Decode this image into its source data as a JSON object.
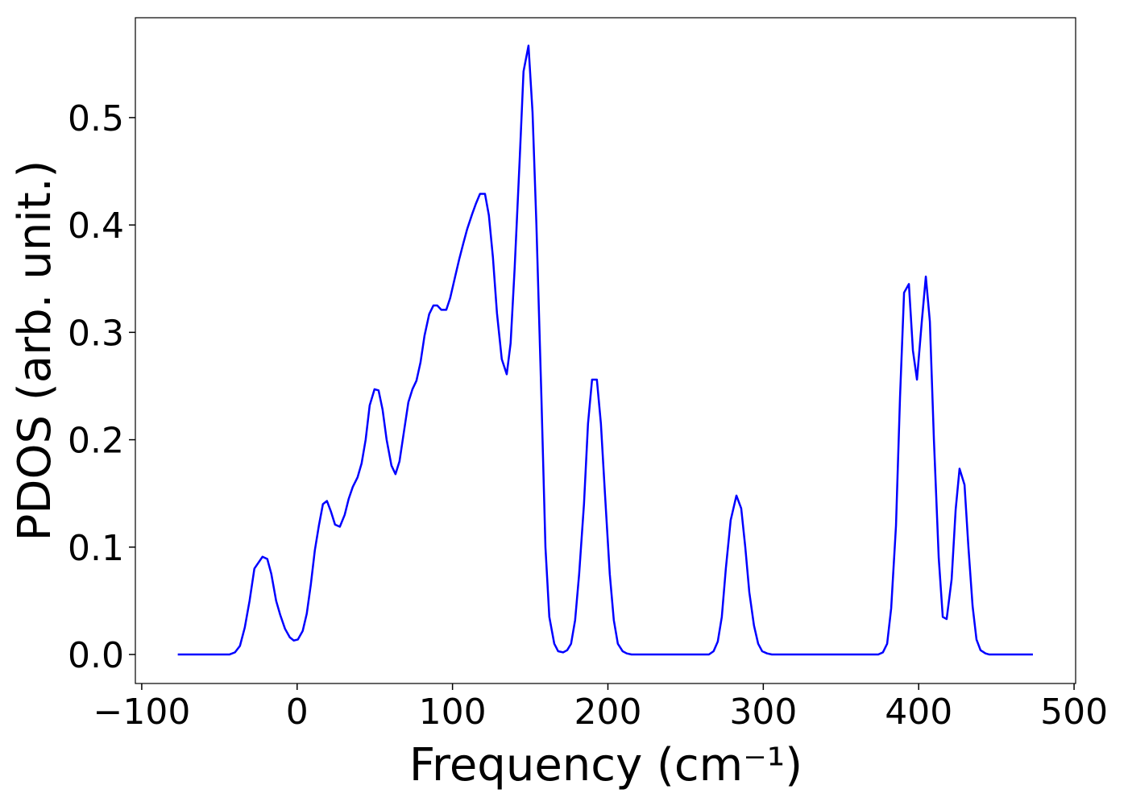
{
  "chart_data": {
    "type": "line",
    "xlabel": "Frequency (cm⁻¹)",
    "ylabel": "PDOS (arb. unit.)",
    "x": [
      -76.8,
      -43.6,
      -40,
      -36.8,
      -33.7,
      -30.6,
      -27.5,
      -22.3,
      -19.2,
      -16.6,
      -13.5,
      -10.9,
      -7.8,
      -4.7,
      -2.1,
      0.5,
      3.6,
      6.2,
      8.8,
      11.4,
      14,
      16.6,
      19.2,
      21.8,
      24.4,
      27.5,
      30.6,
      33.2,
      35.8,
      38.9,
      41.5,
      44.1,
      46.7,
      49.8,
      52.4,
      55,
      57.6,
      60.7,
      63.3,
      65.9,
      69,
      71.6,
      74.2,
      76.8,
      79.4,
      82,
      85,
      87.7,
      90.2,
      92.8,
      96,
      98.5,
      101.7,
      104.3,
      106.8,
      109.4,
      112.6,
      115.1,
      117.7,
      120.9,
      123.4,
      126,
      128.6,
      131.7,
      134.9,
      137.4,
      140,
      143.2,
      145.7,
      148.9,
      151.5,
      154,
      157.2,
      159.8,
      162.3,
      165.5,
      168,
      171.2,
      173.8,
      176.3,
      178.9,
      181.5,
      184.6,
      187.2,
      189.8,
      192.9,
      195.5,
      198.1,
      201.2,
      203.8,
      206.4,
      209.5,
      212.1,
      215.2,
      265,
      268,
      270.7,
      273.3,
      275.9,
      279,
      282.7,
      285.8,
      288.4,
      291,
      294,
      296.7,
      299.3,
      302.4,
      305.5,
      374,
      377,
      379.7,
      382.3,
      385.4,
      388,
      390.6,
      393.7,
      396.3,
      398.9,
      402,
      404.6,
      407.2,
      409.8,
      412.9,
      415.5,
      418,
      421.2,
      423.8,
      426.3,
      429.5,
      432,
      434.7,
      437.2,
      439.8,
      443,
      445.5,
      473.5
    ],
    "series": [
      {
        "color": "#0000ff",
        "values": [
          0,
          0,
          0.002,
          0.008,
          0.025,
          0.05,
          0.08,
          0.091,
          0.089,
          0.075,
          0.05,
          0.037,
          0.024,
          0.016,
          0.013,
          0.014,
          0.022,
          0.038,
          0.065,
          0.097,
          0.12,
          0.14,
          0.143,
          0.133,
          0.121,
          0.119,
          0.13,
          0.145,
          0.156,
          0.165,
          0.178,
          0.2,
          0.232,
          0.247,
          0.246,
          0.228,
          0.2,
          0.176,
          0.168,
          0.18,
          0.21,
          0.235,
          0.247,
          0.255,
          0.272,
          0.297,
          0.317,
          0.325,
          0.325,
          0.321,
          0.321,
          0.332,
          0.352,
          0.368,
          0.382,
          0.396,
          0.41,
          0.42,
          0.429,
          0.429,
          0.409,
          0.37,
          0.318,
          0.275,
          0.261,
          0.29,
          0.36,
          0.46,
          0.543,
          0.567,
          0.505,
          0.4,
          0.24,
          0.1,
          0.035,
          0.01,
          0.003,
          0.002,
          0.004,
          0.01,
          0.032,
          0.075,
          0.14,
          0.215,
          0.256,
          0.256,
          0.215,
          0.15,
          0.075,
          0.032,
          0.01,
          0.003,
          0.001,
          0,
          0,
          0.003,
          0.012,
          0.035,
          0.08,
          0.125,
          0.148,
          0.136,
          0.1,
          0.058,
          0.027,
          0.01,
          0.003,
          0.001,
          0,
          0,
          0.002,
          0.01,
          0.043,
          0.12,
          0.24,
          0.337,
          0.345,
          0.283,
          0.256,
          0.31,
          0.352,
          0.31,
          0.2,
          0.09,
          0.035,
          0.033,
          0.07,
          0.135,
          0.173,
          0.158,
          0.1,
          0.045,
          0.014,
          0.004,
          0.001,
          0,
          0
        ]
      }
    ],
    "xlim": [
      -104.1,
      501
    ],
    "ylim": [
      -0.027,
      0.593
    ],
    "xticks": [
      {
        "value": -100,
        "label": "−100"
      },
      0,
      100,
      200,
      300,
      400,
      500
    ],
    "yticks": [
      {
        "value": 0,
        "label": "0.0"
      },
      0.1,
      0.2,
      0.3,
      0.4,
      0.5
    ],
    "grid": false
  }
}
